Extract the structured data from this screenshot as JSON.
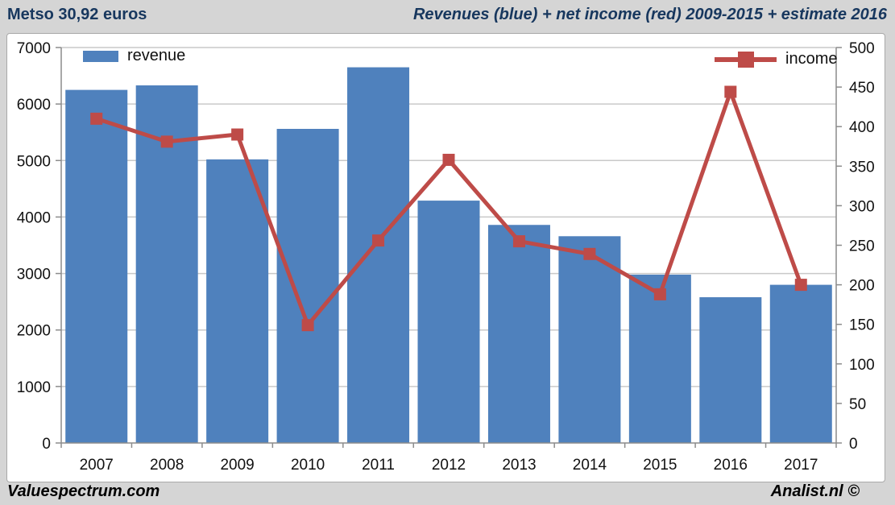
{
  "header": {
    "left_title": "Metso 30,92 euros",
    "right_title": "Revenues (blue) + net income (red) 2009-2015 + estimate 2016"
  },
  "legend": {
    "revenue_label": "revenue",
    "income_label": "income"
  },
  "footer": {
    "left": "Valuespectrum.com",
    "right": "Analist.nl ©"
  },
  "colors": {
    "bar": "#4f81bd",
    "line": "#be4b48",
    "title": "#17375e",
    "background": "#d5d5d5",
    "plot_background": "#ffffff",
    "grid": "#c9c9c9",
    "axis": "#8c8c8c",
    "text": "#111111"
  },
  "chart_data": {
    "type": "bar",
    "subtype": "bar+line combo, dual y-axes",
    "title": "Revenues (blue) + net income (red) 2009-2015 + estimate 2016",
    "categories": [
      "2007",
      "2008",
      "2009",
      "2010",
      "2011",
      "2012",
      "2013",
      "2014",
      "2015",
      "2016",
      "2017"
    ],
    "series": [
      {
        "name": "revenue",
        "type": "bar",
        "axis": "left",
        "color": "#4f81bd",
        "values": [
          6250,
          6330,
          5020,
          5560,
          6650,
          4290,
          3860,
          3660,
          2980,
          2580,
          2800
        ]
      },
      {
        "name": "income",
        "type": "line",
        "axis": "right",
        "color": "#be4b48",
        "marker": "square",
        "values": [
          410,
          381,
          390,
          149,
          256,
          358,
          255,
          239,
          188,
          444,
          200
        ]
      }
    ],
    "left_axis": {
      "min": 0,
      "max": 7000,
      "step": 1000
    },
    "right_axis": {
      "min": 0,
      "max": 500,
      "step": 50
    },
    "grid": "horizontal gridlines on",
    "legend_position": "revenue top-left, income top-right"
  }
}
